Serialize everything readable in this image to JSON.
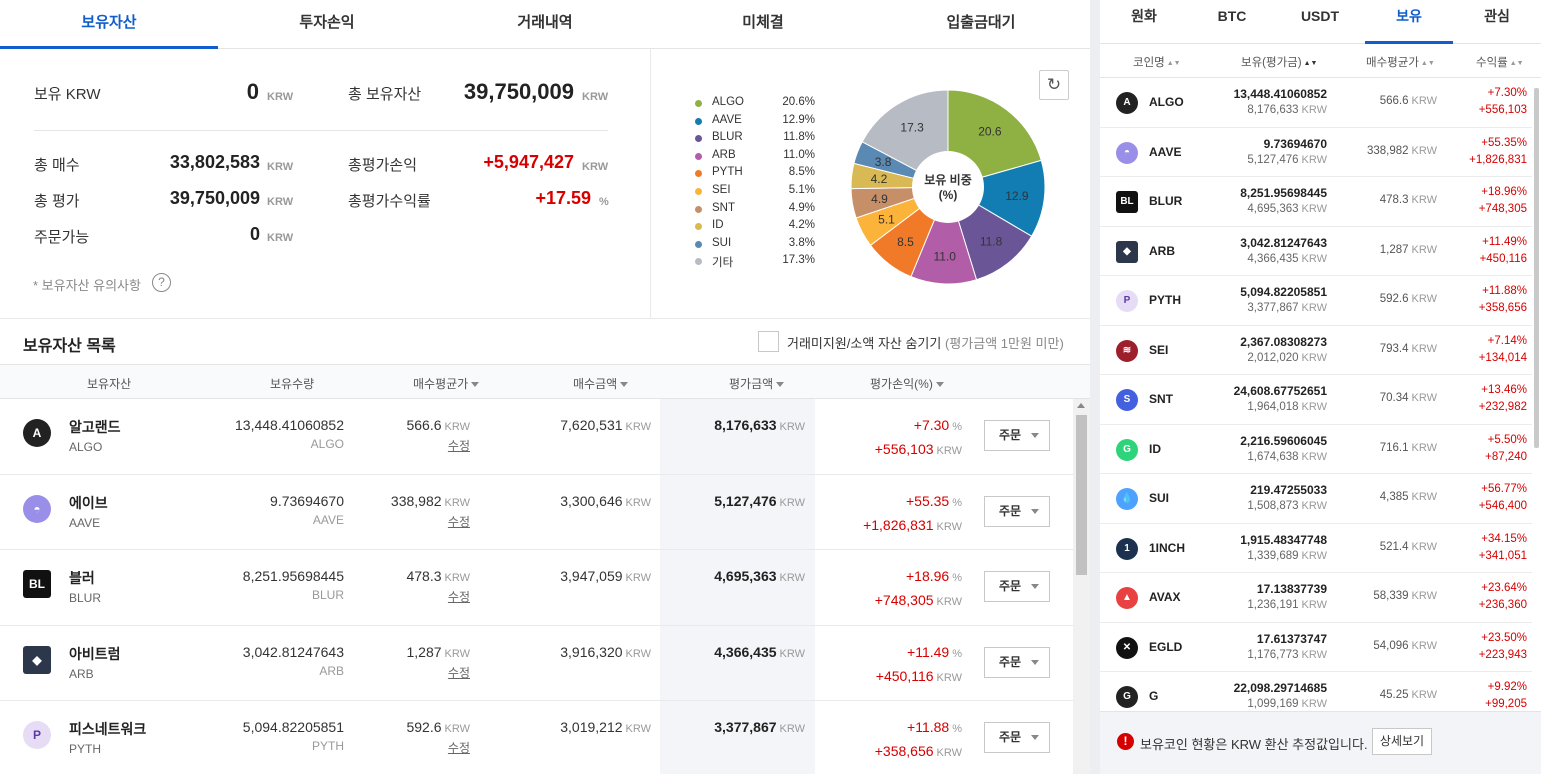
{
  "tabs": [
    "보유자산",
    "투자손익",
    "거래내역",
    "미체결",
    "입출금대기"
  ],
  "summary": {
    "krw_label": "보유 KRW",
    "krw_value": "0",
    "total_assets_label": "총 보유자산",
    "total_assets_value": "39,750,009",
    "total_buy_label": "총 매수",
    "total_buy_value": "33,802,583",
    "total_eval_label": "총 평가",
    "total_eval_value": "39,750,009",
    "orderable_label": "주문가능",
    "orderable_value": "0",
    "total_pl_label": "총평가손익",
    "total_pl_value": "+5,947,427",
    "total_rate_label": "총평가수익률",
    "total_rate_value": "+17.59",
    "unit": "KRW",
    "pct_unit": "%",
    "note": "* 보유자산 유의사항",
    "help_icon": "question-circle-icon"
  },
  "chart_data": {
    "type": "pie",
    "center_label": [
      "보유 비중",
      "(%)"
    ],
    "slices": [
      {
        "name": "ALGO",
        "value": 20.6,
        "label": "20.6%",
        "color": "#8fb043"
      },
      {
        "name": "AAVE",
        "value": 12.9,
        "label": "12.9%",
        "color": "#117db3"
      },
      {
        "name": "BLUR",
        "value": 11.8,
        "label": "11.8%",
        "color": "#6a5697"
      },
      {
        "name": "ARB",
        "value": 11.0,
        "label": "11.0%",
        "color": "#b25da8"
      },
      {
        "name": "PYTH",
        "value": 8.5,
        "label": "8.5%",
        "color": "#f07a28"
      },
      {
        "name": "SEI",
        "value": 5.1,
        "label": "5.1%",
        "color": "#fbb33a"
      },
      {
        "name": "SNT",
        "value": 4.9,
        "label": "4.9%",
        "color": "#c68f68"
      },
      {
        "name": "ID",
        "value": 4.2,
        "label": "4.2%",
        "color": "#d8b953"
      },
      {
        "name": "SUI",
        "value": 3.8,
        "label": "3.8%",
        "color": "#5a8ab3"
      },
      {
        "name": "기타",
        "value": 17.3,
        "label": "17.3%",
        "color": "#b7bbc4"
      }
    ]
  },
  "list": {
    "title": "보유자산 목록",
    "hide_label": "거래미지원/소액 자산 숨기기",
    "hide_note": "(평가금액 1만원 미만)",
    "columns": [
      "보유자산",
      "보유수량",
      "매수평균가",
      "매수금액",
      "평가금액",
      "평가손익(%)"
    ],
    "edit_label": "수정",
    "order_label": "주문",
    "unit": "KRW",
    "pct_unit": "%",
    "rows": [
      {
        "name": "알고랜드",
        "sym": "ALGO",
        "qty": "13,448.41060852",
        "avg": "566.6",
        "buy": "7,620,531",
        "eval": "8,176,633",
        "pct": "+7.30",
        "pl": "+556,103",
        "icon": "algo-icon",
        "color": "#222"
      },
      {
        "name": "에이브",
        "sym": "AAVE",
        "qty": "9.73694670",
        "avg": "338,982",
        "buy": "3,300,646",
        "eval": "5,127,476",
        "pct": "+55.35",
        "pl": "+1,826,831",
        "icon": "aave-icon",
        "color": "#9a8fe8"
      },
      {
        "name": "블러",
        "sym": "BLUR",
        "qty": "8,251.95698445",
        "avg": "478.3",
        "buy": "3,947,059",
        "eval": "4,695,363",
        "pct": "+18.96",
        "pl": "+748,305",
        "icon": "blur-icon",
        "color": "#111"
      },
      {
        "name": "아비트럼",
        "sym": "ARB",
        "qty": "3,042.81247643",
        "avg": "1,287",
        "buy": "3,916,320",
        "eval": "4,366,435",
        "pct": "+11.49",
        "pl": "+450,116",
        "icon": "arb-icon",
        "color": "#2d374b"
      },
      {
        "name": "피스네트워크",
        "sym": "PYTH",
        "qty": "5,094.82205851",
        "avg": "592.6",
        "buy": "3,019,212",
        "eval": "3,377,867",
        "pct": "+11.88",
        "pl": "+358,656",
        "icon": "pyth-icon",
        "color": "#e6dcf5"
      }
    ]
  },
  "right": {
    "tabs": [
      "원화",
      "BTC",
      "USDT",
      "보유",
      "관심"
    ],
    "columns": [
      "코인명",
      "보유(평가금)",
      "매수평균가",
      "수익률"
    ],
    "unit": "KRW",
    "rows": [
      {
        "sym": "ALGO",
        "qty": "13,448.41060852",
        "val": "8,176,633",
        "avg": "566.6",
        "pct": "+7.30%",
        "pl": "+556,103",
        "icon": "algo-icon",
        "color": "#222"
      },
      {
        "sym": "AAVE",
        "qty": "9.73694670",
        "val": "5,127,476",
        "avg": "338,982",
        "pct": "+55.35%",
        "pl": "+1,826,831",
        "icon": "aave-icon",
        "color": "#9a8fe8"
      },
      {
        "sym": "BLUR",
        "qty": "8,251.95698445",
        "val": "4,695,363",
        "avg": "478.3",
        "pct": "+18.96%",
        "pl": "+748,305",
        "icon": "blur-icon",
        "color": "#111"
      },
      {
        "sym": "ARB",
        "qty": "3,042.81247643",
        "val": "4,366,435",
        "avg": "1,287",
        "pct": "+11.49%",
        "pl": "+450,116",
        "icon": "arb-icon",
        "color": "#2d374b"
      },
      {
        "sym": "PYTH",
        "qty": "5,094.82205851",
        "val": "3,377,867",
        "avg": "592.6",
        "pct": "+11.88%",
        "pl": "+358,656",
        "icon": "pyth-icon",
        "color": "#e6dcf5"
      },
      {
        "sym": "SEI",
        "qty": "2,367.08308273",
        "val": "2,012,020",
        "avg": "793.4",
        "pct": "+7.14%",
        "pl": "+134,014",
        "icon": "sei-icon",
        "color": "#9e1f2c"
      },
      {
        "sym": "SNT",
        "qty": "24,608.67752651",
        "val": "1,964,018",
        "avg": "70.34",
        "pct": "+13.46%",
        "pl": "+232,982",
        "icon": "snt-icon",
        "color": "#4360df"
      },
      {
        "sym": "ID",
        "qty": "2,216.59606045",
        "val": "1,674,638",
        "avg": "716.1",
        "pct": "+5.50%",
        "pl": "+87,240",
        "icon": "id-icon",
        "color": "#2ed47a"
      },
      {
        "sym": "SUI",
        "qty": "219.47255033",
        "val": "1,508,873",
        "avg": "4,385",
        "pct": "+56.77%",
        "pl": "+546,400",
        "icon": "sui-icon",
        "color": "#4da2ff"
      },
      {
        "sym": "1INCH",
        "qty": "1,915.48347748",
        "val": "1,339,689",
        "avg": "521.4",
        "pct": "+34.15%",
        "pl": "+341,051",
        "icon": "1inch-icon",
        "color": "#1b314f"
      },
      {
        "sym": "AVAX",
        "qty": "17.13837739",
        "val": "1,236,191",
        "avg": "58,339",
        "pct": "+23.64%",
        "pl": "+236,360",
        "icon": "avax-icon",
        "color": "#e84142"
      },
      {
        "sym": "EGLD",
        "qty": "17.61373747",
        "val": "1,176,773",
        "avg": "54,096",
        "pct": "+23.50%",
        "pl": "+223,943",
        "icon": "egld-icon",
        "color": "#111"
      },
      {
        "sym": "G",
        "qty": "22,098.29714685",
        "val": "1,099,169",
        "avg": "45.25",
        "pct": "+9.92%",
        "pl": "+99,205",
        "icon": "g-icon",
        "color": "#222"
      }
    ],
    "footer_text": "보유코인 현황은 KRW 환산 추정값입니다.",
    "footer_button": "상세보기",
    "footer_icon": "alert-icon"
  },
  "colors": {
    "accent": "#115dcb",
    "up": "#d60000"
  }
}
